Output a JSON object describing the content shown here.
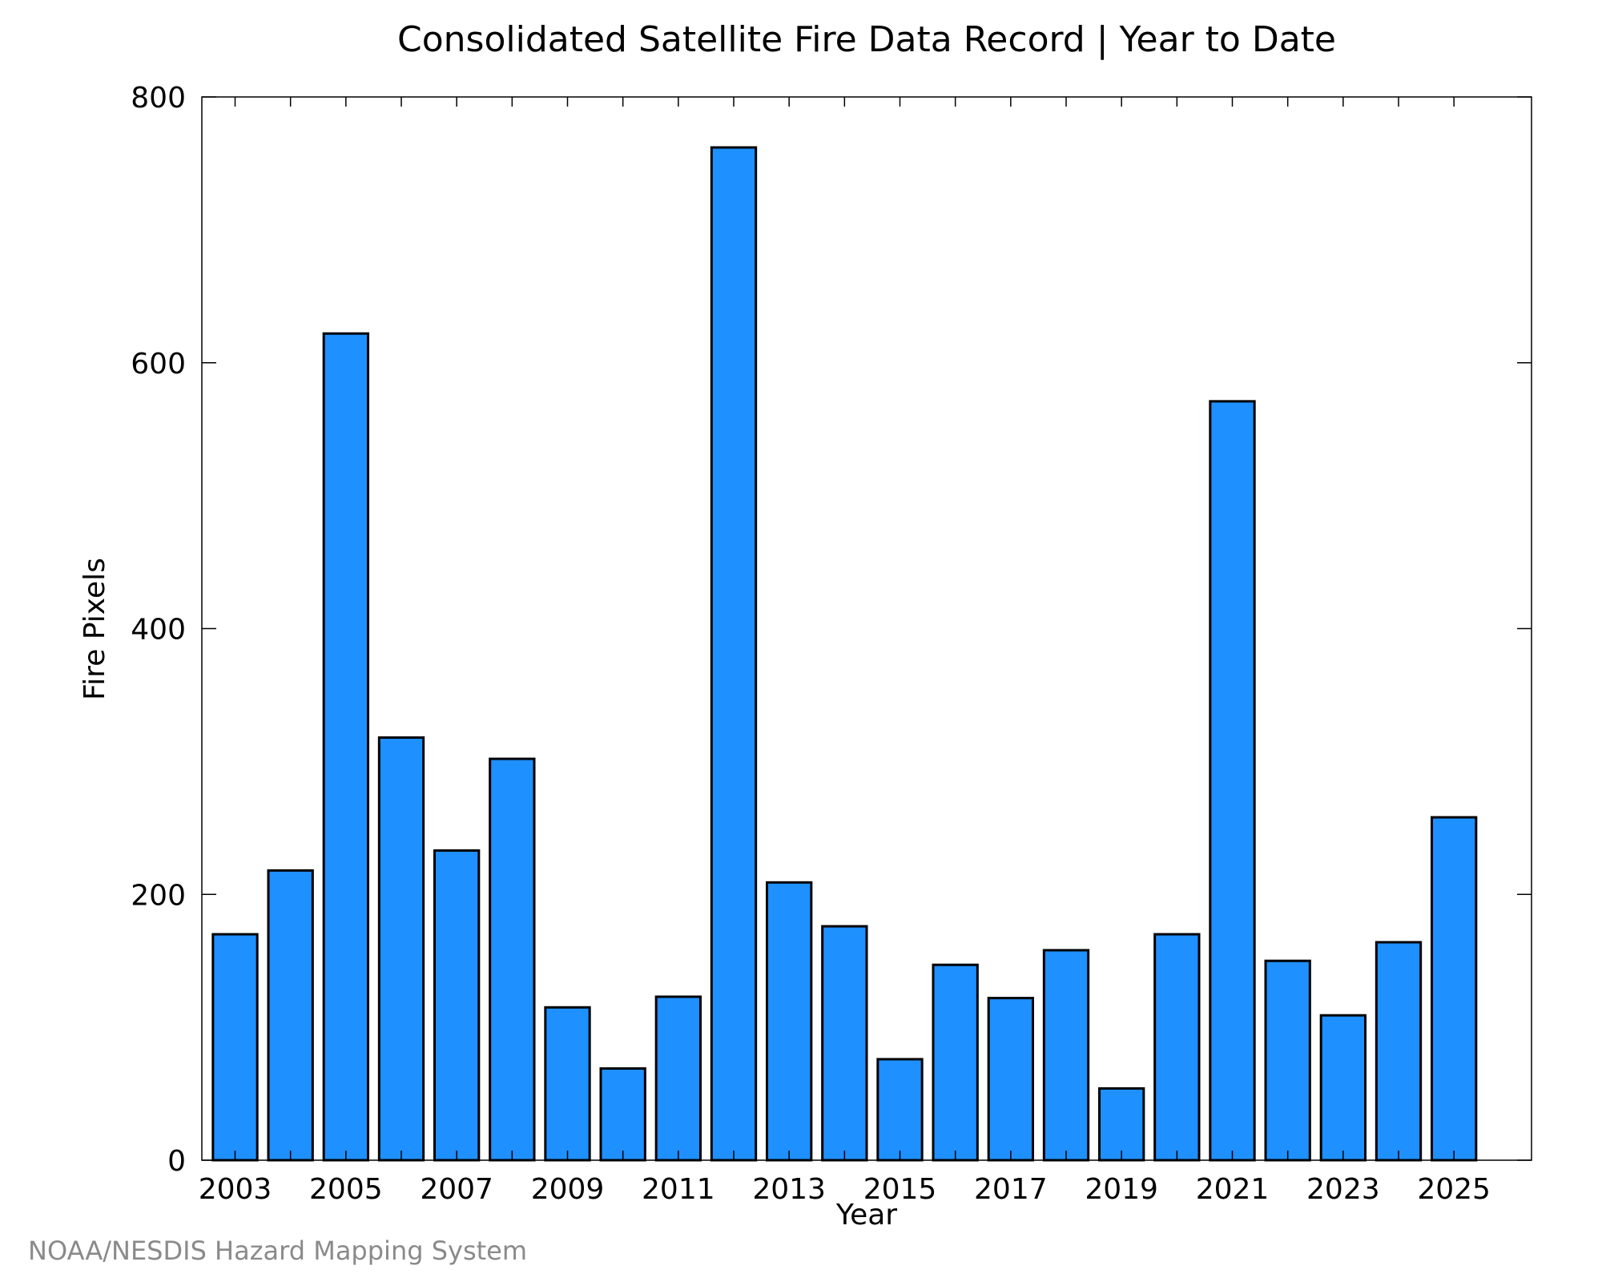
{
  "chart_data": {
    "type": "bar",
    "title": "Consolidated Satellite Fire Data Record | Year to Date",
    "xlabel": "Year",
    "ylabel": "Fire Pixels",
    "ylim": [
      0,
      800
    ],
    "xlim": [
      2002.4,
      2026.4
    ],
    "yticks": [
      0,
      200,
      400,
      600,
      800
    ],
    "xtick_labels": [
      "2003",
      "2005",
      "2007",
      "2009",
      "2011",
      "2013",
      "2015",
      "2017",
      "2019",
      "2021",
      "2023",
      "2025"
    ],
    "x": [
      2003,
      2004,
      2005,
      2006,
      2007,
      2008,
      2009,
      2010,
      2011,
      2012,
      2013,
      2014,
      2015,
      2016,
      2017,
      2018,
      2019,
      2020,
      2021,
      2022,
      2023,
      2024,
      2025
    ],
    "values": [
      170,
      218,
      622,
      318,
      233,
      302,
      115,
      69,
      123,
      762,
      209,
      176,
      76,
      147,
      122,
      158,
      54,
      170,
      571,
      150,
      109,
      164,
      258
    ],
    "bar_color": "#1e90ff",
    "bar_edge_color": "#000000",
    "grid": false,
    "legend": "none",
    "credit": "NOAA/NESDIS Hazard Mapping System"
  }
}
